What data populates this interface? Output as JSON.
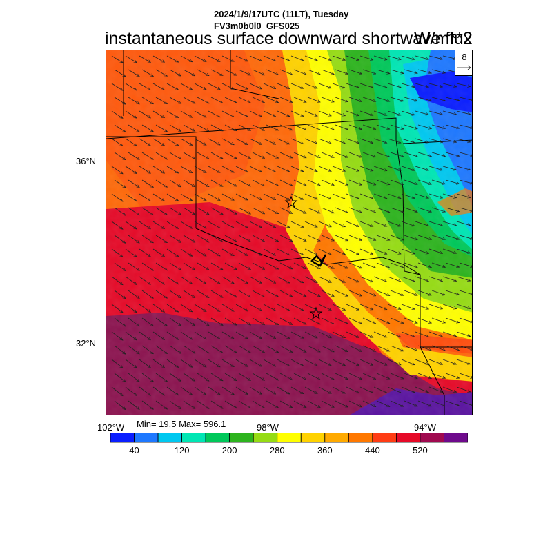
{
  "header": {
    "datetime": "2024/1/9/17UTC (11LT), Tuesday",
    "model": "FV3m0b0l0_GFS025",
    "title": "instantaneous surface downward shortwave flux",
    "units": "W/m**2"
  },
  "axes": {
    "lat_labels": [
      "36°N",
      "32°N"
    ],
    "lon_labels": [
      "102°W",
      "98°W",
      "94°W"
    ]
  },
  "stats": {
    "text": "Min= 19.5 Max= 596.1"
  },
  "vector_reference": {
    "value": "8"
  },
  "colorbar": {
    "colors": [
      "#0a1eff",
      "#1e78ff",
      "#00c8f0",
      "#00e6b4",
      "#00c85a",
      "#2db41e",
      "#96dc14",
      "#ffff00",
      "#ffd200",
      "#ffaa00",
      "#ff7800",
      "#ff3c14",
      "#e60a28",
      "#a00a50",
      "#6e0a8c"
    ],
    "labels": [
      "40",
      "120",
      "200",
      "280",
      "360",
      "440",
      "520"
    ]
  },
  "map": {
    "region": "Oklahoma / North Texas",
    "shading_colors": {
      "dark_purple": "#8c1450",
      "red": "#e60a28",
      "orange_red": "#ff3c14",
      "orange": "#ff7800",
      "yellow": "#ffff00",
      "green": "#2db41e",
      "cyan": "#00c8f0",
      "blue": "#1e78ff",
      "deep_blue": "#0a1eff",
      "violet": "#5a14a0"
    }
  }
}
